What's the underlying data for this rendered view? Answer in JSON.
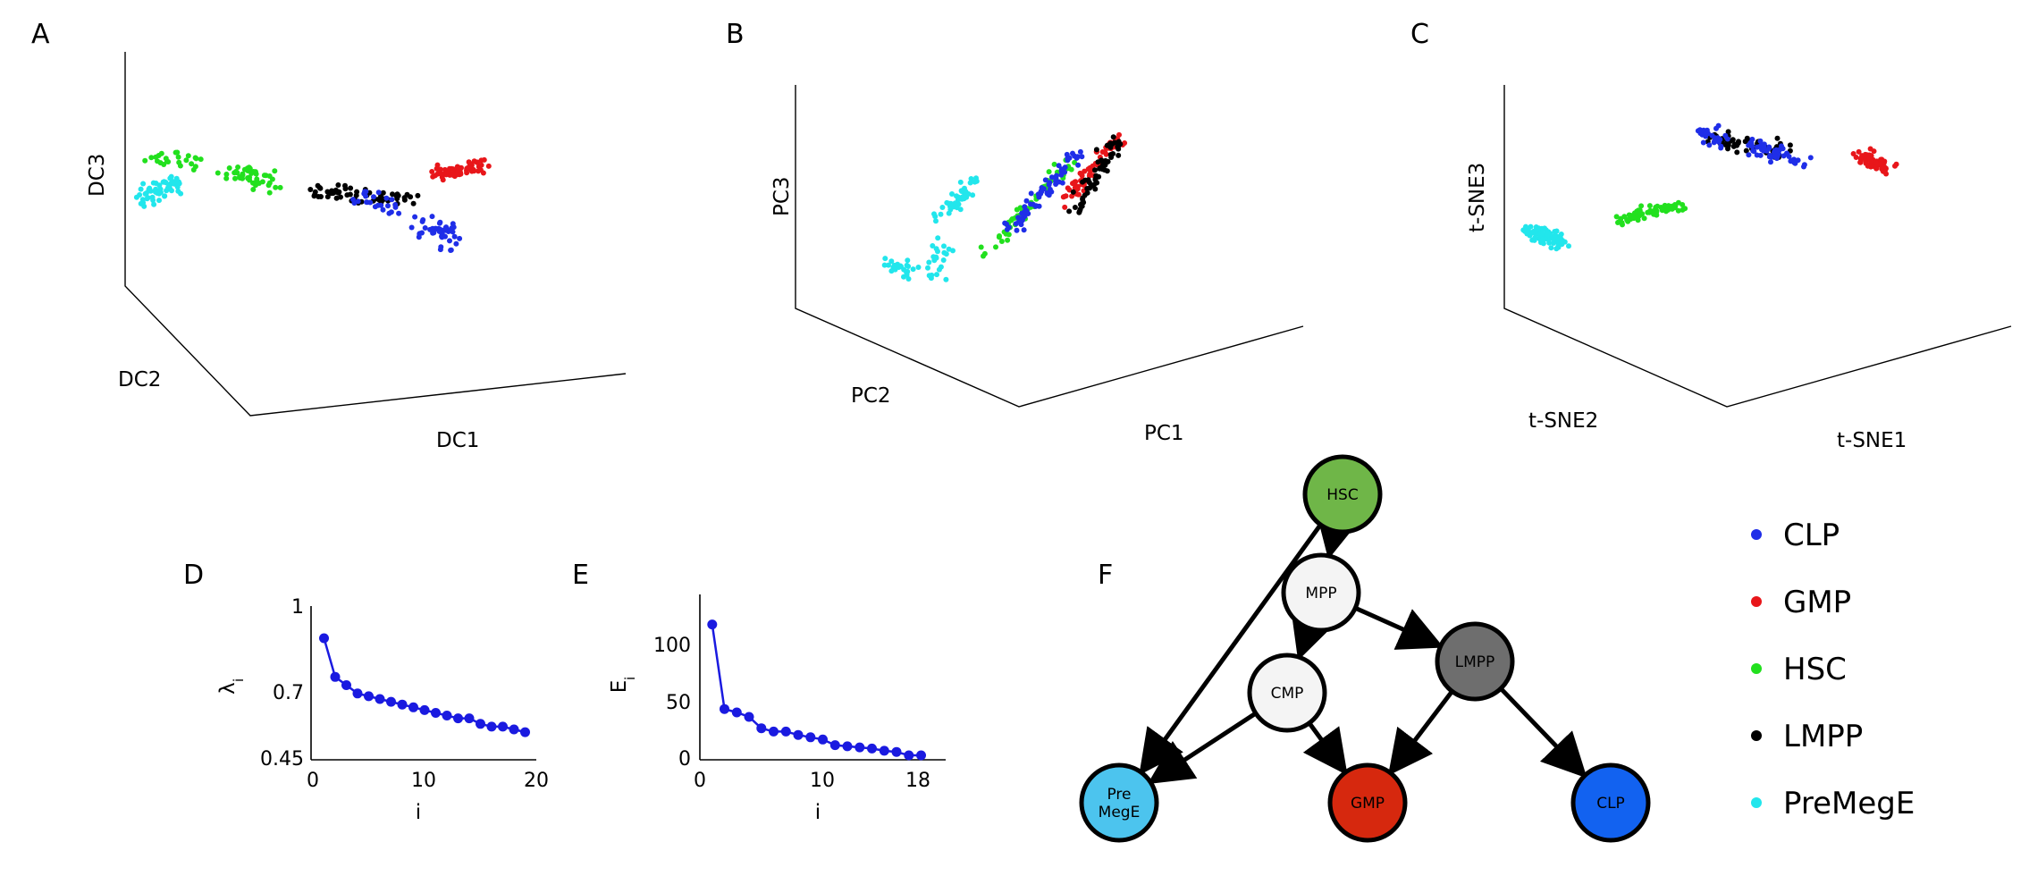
{
  "colors": {
    "CLP": "#1f2ee8",
    "GMP": "#e8161a",
    "HSC": "#22e01e",
    "LMPP": "#000000",
    "PreMegE": "#22e6ec",
    "line": "#1a1ae0"
  },
  "panels": {
    "A": "A",
    "B": "B",
    "C": "C",
    "D": "D",
    "E": "E",
    "F": "F"
  },
  "chart_data": [
    {
      "panel": "A",
      "type": "scatter",
      "projection": "3d",
      "axis_labels": {
        "x": "DC1",
        "y": "DC2",
        "z": "DC3"
      },
      "clusters": [
        {
          "name": "PreMegE",
          "color": "#22e6ec",
          "n": 60,
          "anchors": [
            [
              0.02,
              0.05,
              0.4
            ],
            [
              0.08,
              0.2,
              0.55
            ]
          ],
          "spread": [
            0.03,
            0.05,
            0.06
          ]
        },
        {
          "name": "HSC",
          "color": "#22e01e",
          "n": 70,
          "anchors": [
            [
              0.05,
              0.1,
              0.6
            ],
            [
              0.2,
              0.3,
              0.62
            ],
            [
              0.3,
              0.4,
              0.6
            ]
          ],
          "spread": [
            0.05,
            0.05,
            0.05
          ]
        },
        {
          "name": "LMPP",
          "color": "#000000",
          "n": 60,
          "anchors": [
            [
              0.35,
              0.45,
              0.6
            ],
            [
              0.55,
              0.6,
              0.6
            ]
          ],
          "spread": [
            0.06,
            0.05,
            0.03
          ]
        },
        {
          "name": "CLP",
          "color": "#1f2ee8",
          "n": 70,
          "anchors": [
            [
              0.45,
              0.5,
              0.58
            ],
            [
              0.62,
              0.62,
              0.5
            ],
            [
              0.68,
              0.65,
              0.4
            ]
          ],
          "spread": [
            0.04,
            0.04,
            0.06
          ]
        },
        {
          "name": "GMP",
          "color": "#e8161a",
          "n": 70,
          "anchors": [
            [
              0.62,
              0.62,
              0.7
            ],
            [
              0.72,
              0.7,
              0.78
            ]
          ],
          "spread": [
            0.04,
            0.04,
            0.04
          ]
        }
      ]
    },
    {
      "panel": "B",
      "type": "scatter",
      "projection": "3d",
      "axis_labels": {
        "x": "PC1",
        "y": "PC2",
        "z": "PC3"
      },
      "clusters": [
        {
          "name": "PreMegE",
          "color": "#22e6ec",
          "n": 90,
          "anchors": [
            [
              0.1,
              0.3,
              0.3
            ],
            [
              0.2,
              0.35,
              0.2
            ],
            [
              0.1,
              0.6,
              0.7
            ],
            [
              0.2,
              0.55,
              0.75
            ]
          ],
          "spread": [
            0.05,
            0.04,
            0.04
          ]
        },
        {
          "name": "HSC",
          "color": "#22e01e",
          "n": 60,
          "anchors": [
            [
              0.35,
              0.4,
              0.3
            ],
            [
              0.4,
              0.7,
              0.8
            ]
          ],
          "spread": [
            0.04,
            0.03,
            0.04
          ]
        },
        {
          "name": "CLP",
          "color": "#1f2ee8",
          "n": 70,
          "anchors": [
            [
              0.4,
              0.45,
              0.4
            ],
            [
              0.45,
              0.7,
              0.85
            ]
          ],
          "spread": [
            0.04,
            0.04,
            0.04
          ]
        },
        {
          "name": "GMP",
          "color": "#e8161a",
          "n": 70,
          "anchors": [
            [
              0.55,
              0.5,
              0.5
            ],
            [
              0.55,
              0.75,
              0.9
            ]
          ],
          "spread": [
            0.04,
            0.03,
            0.04
          ]
        },
        {
          "name": "LMPP",
          "color": "#000000",
          "n": 60,
          "anchors": [
            [
              0.6,
              0.5,
              0.45
            ],
            [
              0.55,
              0.75,
              0.92
            ]
          ],
          "spread": [
            0.05,
            0.04,
            0.04
          ]
        }
      ]
    },
    {
      "panel": "C",
      "type": "scatter",
      "projection": "3d",
      "axis_labels": {
        "x": "t-SNE1",
        "y": "t-SNE2",
        "z": "t-SNE3"
      },
      "clusters": [
        {
          "name": "PreMegE",
          "color": "#22e6ec",
          "n": 80,
          "anchors": [
            [
              0.05,
              0.05,
              0.35
            ],
            [
              0.12,
              0.1,
              0.3
            ]
          ],
          "spread": [
            0.04,
            0.04,
            0.05
          ]
        },
        {
          "name": "HSC",
          "color": "#22e01e",
          "n": 70,
          "anchors": [
            [
              0.25,
              0.2,
              0.4
            ],
            [
              0.4,
              0.3,
              0.45
            ]
          ],
          "spread": [
            0.05,
            0.04,
            0.04
          ]
        },
        {
          "name": "LMPP",
          "color": "#000000",
          "n": 60,
          "anchors": [
            [
              0.35,
              0.5,
              0.85
            ],
            [
              0.55,
              0.55,
              0.75
            ]
          ],
          "spread": [
            0.06,
            0.04,
            0.05
          ]
        },
        {
          "name": "CLP",
          "color": "#1f2ee8",
          "n": 80,
          "anchors": [
            [
              0.3,
              0.5,
              0.9
            ],
            [
              0.45,
              0.55,
              0.8
            ],
            [
              0.6,
              0.6,
              0.7
            ]
          ],
          "spread": [
            0.05,
            0.04,
            0.05
          ]
        },
        {
          "name": "GMP",
          "color": "#e8161a",
          "n": 70,
          "anchors": [
            [
              0.75,
              0.65,
              0.7
            ],
            [
              0.8,
              0.7,
              0.65
            ]
          ],
          "spread": [
            0.04,
            0.04,
            0.04
          ]
        }
      ]
    },
    {
      "panel": "D",
      "type": "line",
      "x": [
        1,
        2,
        3,
        4,
        5,
        6,
        7,
        8,
        9,
        10,
        11,
        12,
        13,
        14,
        15,
        16,
        17,
        18,
        19
      ],
      "y": [
        0.89,
        0.75,
        0.72,
        0.69,
        0.68,
        0.67,
        0.66,
        0.65,
        0.64,
        0.63,
        0.62,
        0.61,
        0.6,
        0.6,
        0.58,
        0.57,
        0.57,
        0.56,
        0.55
      ],
      "xlim": [
        0,
        20
      ],
      "ylim": [
        0.45,
        1
      ],
      "xticks": [
        "0",
        "10",
        "20"
      ],
      "yticks": [
        "0.45",
        "0.7",
        "1"
      ],
      "xlabel": "i",
      "ylabel_main": "λ",
      "ylabel_sub": "i"
    },
    {
      "panel": "E",
      "type": "line",
      "x": [
        1,
        2,
        3,
        4,
        5,
        6,
        7,
        8,
        9,
        10,
        11,
        12,
        13,
        14,
        15,
        16,
        17,
        18
      ],
      "y": [
        120,
        45,
        42,
        38,
        28,
        25,
        25,
        22,
        20,
        18,
        13,
        12,
        11,
        10,
        8,
        7,
        4,
        4
      ],
      "xlim": [
        0,
        20
      ],
      "ylim": [
        0,
        145
      ],
      "xticks": [
        "0",
        "10",
        "18"
      ],
      "yticks": [
        "0",
        "50",
        "100"
      ],
      "xlabel": "i",
      "ylabel_main": "E",
      "ylabel_sub": "i"
    }
  ],
  "lineage": {
    "nodes": [
      {
        "id": "HSC",
        "label": "HSC",
        "color": "#6fb648"
      },
      {
        "id": "MPP",
        "label": "MPP",
        "color": "#f4f4f4"
      },
      {
        "id": "CMP",
        "label": "CMP",
        "color": "#f4f4f4"
      },
      {
        "id": "LMPP",
        "label": "LMPP",
        "color": "#6e6e6e"
      },
      {
        "id": "PreMegE",
        "label": "Pre MegE",
        "color": "#4cc4ee"
      },
      {
        "id": "GMP",
        "label": "GMP",
        "color": "#d6280e"
      },
      {
        "id": "CLP",
        "label": "CLP",
        "color": "#1262f0"
      }
    ],
    "edges": [
      [
        "HSC",
        "MPP"
      ],
      [
        "HSC",
        "PreMegE"
      ],
      [
        "MPP",
        "CMP"
      ],
      [
        "MPP",
        "LMPP"
      ],
      [
        "CMP",
        "PreMegE"
      ],
      [
        "CMP",
        "GMP"
      ],
      [
        "LMPP",
        "GMP"
      ],
      [
        "LMPP",
        "CLP"
      ]
    ]
  },
  "legend": [
    {
      "label": "CLP",
      "color": "#1f2ee8"
    },
    {
      "label": "GMP",
      "color": "#e8161a"
    },
    {
      "label": "HSC",
      "color": "#22e01e"
    },
    {
      "label": "LMPP",
      "color": "#000000"
    },
    {
      "label": "PreMegE",
      "color": "#22e6ec"
    }
  ]
}
